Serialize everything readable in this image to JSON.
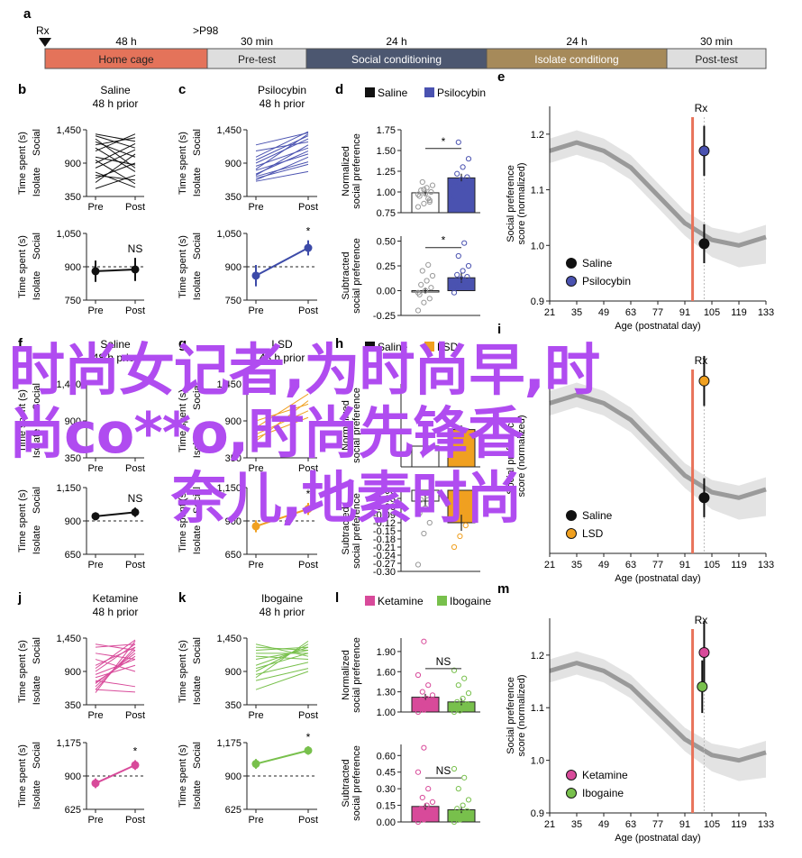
{
  "timeline": {
    "panel_letter": "a",
    "rx_label": "Rx",
    "p_label": ">P98",
    "segments": [
      {
        "duration": "48 h",
        "label": "Home cage",
        "color": "#e4735a"
      },
      {
        "duration": "30 min",
        "label": "Pre-test",
        "color": "#dedede"
      },
      {
        "duration": "24 h",
        "label": "Social conditioning",
        "color": "#4c5770"
      },
      {
        "duration": "24 h",
        "label": "Isolate conditiong",
        "color": "#a68a5a"
      },
      {
        "duration": "30 min",
        "label": "Post-test",
        "color": "#dedede"
      }
    ]
  },
  "labels": {
    "time_spent": "Time spent (s)",
    "social": "Social",
    "isolate": "Isolate",
    "pre": "Pre",
    "post": "Post",
    "norm_pref_1": "Normalized",
    "norm_pref_2": "social preference",
    "sub_pref_1": "Subtracted",
    "sub_pref_2": "social preference",
    "score_1": "Social preference",
    "score_2": "score (normalized)",
    "age_axis": "Age (postnatal day)",
    "rx": "Rx"
  },
  "watermark": {
    "line1": "时尚女记者,为时尚早,时",
    "line2": "尚co**o,时尚先锋香",
    "line3": "奈儿,地素时尚"
  },
  "chart_data": [
    {
      "panel": "b",
      "type": "line",
      "title": "Saline",
      "subtitle": "48 h prior",
      "color": "#111111",
      "categories": [
        "Pre",
        "Post"
      ],
      "yticks": [
        350,
        900,
        1450
      ],
      "ylim": [
        350,
        1450
      ],
      "lines": [
        [
          1000,
          870
        ],
        [
          1350,
          1150
        ],
        [
          700,
          620
        ],
        [
          1200,
          1320
        ],
        [
          580,
          1050
        ],
        [
          900,
          1220
        ],
        [
          1300,
          820
        ],
        [
          750,
          500
        ],
        [
          1100,
          1380
        ],
        [
          480,
          700
        ],
        [
          1250,
          1000
        ],
        [
          950,
          560
        ],
        [
          650,
          900
        ],
        [
          1380,
          1260
        ],
        [
          820,
          1120
        ],
        [
          1150,
          760
        ]
      ]
    },
    {
      "panel": "b2",
      "type": "line",
      "title": "",
      "subtitle": "",
      "color": "#111111",
      "categories": [
        "Pre",
        "Post"
      ],
      "yticks": [
        750,
        900,
        1050
      ],
      "ylim": [
        750,
        1050
      ],
      "ref": 900,
      "mean": [
        880,
        888
      ],
      "err": [
        48,
        52
      ],
      "annotation": "NS"
    },
    {
      "panel": "c",
      "type": "line",
      "title": "Psilocybin",
      "subtitle": "48 h prior",
      "color": "#4a52b0",
      "categories": [
        "Pre",
        "Post"
      ],
      "yticks": [
        350,
        900,
        1450
      ],
      "ylim": [
        350,
        1450
      ],
      "lines": [
        [
          620,
          1000
        ],
        [
          700,
          1200
        ],
        [
          800,
          1380
        ],
        [
          900,
          1300
        ],
        [
          650,
          880
        ],
        [
          1000,
          1420
        ],
        [
          720,
          1100
        ],
        [
          1100,
          1250
        ],
        [
          850,
          1150
        ],
        [
          950,
          1350
        ],
        [
          600,
          760
        ],
        [
          780,
          1050
        ],
        [
          1200,
          1400
        ],
        [
          680,
          920
        ]
      ]
    },
    {
      "panel": "c2",
      "type": "line",
      "title": "",
      "subtitle": "",
      "color": "#3c4aa8",
      "categories": [
        "Pre",
        "Post"
      ],
      "yticks": [
        750,
        900,
        1050
      ],
      "ylim": [
        750,
        1050
      ],
      "ref": 900,
      "mean": [
        860,
        985
      ],
      "err": [
        48,
        34
      ],
      "annotation": "*"
    },
    {
      "panel": "d",
      "type": "bar",
      "legend": [
        {
          "name": "Saline",
          "color": "#111111"
        },
        {
          "name": "Psilocybin",
          "color": "#4a52b0"
        }
      ],
      "categories": [
        "Saline",
        "Psilocybin"
      ],
      "yticks": [
        0.75,
        1.0,
        1.25,
        1.5,
        1.75
      ],
      "ylim": [
        0.75,
        1.75
      ],
      "values": [
        0.99,
        1.17
      ],
      "err": [
        0.03,
        0.05
      ],
      "bar_colors": [
        "#ffffff",
        "#4a52b0"
      ],
      "annotation": "*",
      "points": [
        [
          0.82,
          0.86,
          0.9,
          0.95,
          0.98,
          1.0,
          1.02,
          1.05,
          1.08,
          1.12,
          0.92,
          0.97,
          1.03,
          0.88
        ],
        [
          0.95,
          1.05,
          1.1,
          1.12,
          1.15,
          1.18,
          1.22,
          1.3,
          1.4,
          1.6,
          1.0,
          1.08
        ]
      ]
    },
    {
      "panel": "d2",
      "type": "bar",
      "categories": [
        "Saline",
        "Psilocybin"
      ],
      "yticks": [
        -0.25,
        0.0,
        0.25,
        0.5
      ],
      "ylim": [
        -0.25,
        0.55
      ],
      "values": [
        0.0,
        0.13
      ],
      "err": [
        0.03,
        0.05
      ],
      "bar_colors": [
        "#ffffff",
        "#4a52b0"
      ],
      "annotation": "*",
      "points": [
        [
          -0.2,
          -0.12,
          -0.08,
          -0.04,
          0.0,
          0.03,
          0.06,
          0.1,
          0.15,
          0.2,
          0.26,
          -0.02
        ],
        [
          -0.02,
          0.05,
          0.08,
          0.1,
          0.12,
          0.14,
          0.16,
          0.2,
          0.25,
          0.35,
          0.48,
          0.03
        ]
      ]
    },
    {
      "panel": "e",
      "type": "scatter",
      "xlabel": "Age (postnatal day)",
      "xticks": [
        21,
        35,
        49,
        63,
        77,
        91,
        105,
        119,
        133
      ],
      "yticks": [
        0.9,
        1.0,
        1.1,
        1.2
      ],
      "ylim": [
        0.9,
        1.25
      ],
      "rx_x": 95,
      "dash_x": 101,
      "curve": [
        [
          21,
          1.17
        ],
        [
          35,
          1.185
        ],
        [
          49,
          1.17
        ],
        [
          63,
          1.14
        ],
        [
          77,
          1.09
        ],
        [
          91,
          1.04
        ],
        [
          105,
          1.01
        ],
        [
          119,
          1.0
        ],
        [
          133,
          1.015
        ]
      ],
      "series": [
        {
          "name": "Saline",
          "color": "#111111",
          "x": 101,
          "y": 1.003,
          "err": 0.035
        },
        {
          "name": "Psilocybin",
          "color": "#4a52b0",
          "x": 101,
          "y": 1.17,
          "err": 0.045
        }
      ]
    },
    {
      "panel": "f",
      "type": "line",
      "title": "Saline",
      "subtitle": "48 h prior",
      "color": "#111111",
      "categories": [
        "Pre",
        "Post"
      ],
      "yticks": [
        350,
        900,
        1450
      ],
      "ylim": [
        350,
        1450
      ],
      "lines": []
    },
    {
      "panel": "f2",
      "type": "line",
      "title": "",
      "subtitle": "",
      "color": "#111111",
      "categories": [
        "Pre",
        "Post"
      ],
      "yticks": [
        650,
        900,
        1150
      ],
      "ylim": [
        650,
        1150
      ],
      "ref": 900,
      "mean": [
        935,
        965
      ],
      "err": [
        30,
        35
      ],
      "annotation": "NS"
    },
    {
      "panel": "g",
      "type": "line",
      "title": "LSD",
      "subtitle": "48 h prior",
      "color": "#f0a020",
      "categories": [
        "Pre",
        "Post"
      ],
      "yticks": [
        350,
        900,
        1450
      ],
      "ylim": [
        350,
        1450
      ],
      "lines": [
        [
          700,
          1050
        ],
        [
          600,
          1200
        ],
        [
          800,
          1300
        ],
        [
          900,
          1150
        ],
        [
          650,
          950
        ]
      ]
    },
    {
      "panel": "g2",
      "type": "line",
      "title": "",
      "subtitle": "",
      "color": "#f0a020",
      "categories": [
        "Pre",
        "Post"
      ],
      "yticks": [
        650,
        900,
        1150
      ],
      "ylim": [
        650,
        1150
      ],
      "ref": 900,
      "mean": [
        860,
        990
      ],
      "err": [
        45,
        45
      ],
      "annotation": "*"
    },
    {
      "panel": "h",
      "type": "bar",
      "legend": [
        {
          "name": "Saline",
          "color": "#111111"
        },
        {
          "name": "LSD",
          "color": "#f0a020"
        }
      ],
      "categories": [
        "Saline",
        "LSD"
      ],
      "yticks": [],
      "ylim": [
        0.75,
        1.75
      ],
      "values": [
        1.0,
        1.2
      ],
      "err": [
        0.03,
        0.05
      ],
      "bar_colors": [
        "#ffffff",
        "#f0a020"
      ],
      "points": [
        [],
        []
      ]
    },
    {
      "panel": "h2",
      "type": "bar",
      "categories": [
        "Saline",
        "LSD"
      ],
      "yticks": [
        -0.3,
        -0.27,
        -0.24,
        -0.21,
        -0.18,
        -0.15,
        -0.12,
        -0.09,
        -0.06,
        -0.03,
        0.0
      ],
      "ylim": [
        -0.3,
        0.0
      ],
      "values": [
        -0.04,
        -0.12
      ],
      "err": [
        0.02,
        0.03
      ],
      "bar_colors": [
        "#ffffff",
        "#f0a020"
      ],
      "points": [
        [
          -0.275,
          -0.16,
          -0.12,
          -0.085,
          -0.065,
          -0.05,
          -0.035,
          -0.02
        ],
        [
          -0.21,
          -0.17,
          -0.13,
          -0.1,
          -0.08,
          -0.05
        ]
      ]
    },
    {
      "panel": "i",
      "type": "scatter",
      "xlabel": "Age (postnatal day)",
      "xticks": [
        21,
        35,
        49,
        63,
        77,
        91,
        105,
        119,
        133
      ],
      "yticks": [],
      "ylim": [
        0.9,
        1.25
      ],
      "rx_x": 95,
      "dash_x": 101,
      "curve": [
        [
          21,
          1.17
        ],
        [
          35,
          1.185
        ],
        [
          49,
          1.17
        ],
        [
          63,
          1.14
        ],
        [
          77,
          1.09
        ],
        [
          91,
          1.04
        ],
        [
          105,
          1.01
        ],
        [
          119,
          1.0
        ],
        [
          133,
          1.015
        ]
      ],
      "series": [
        {
          "name": "Saline",
          "color": "#111111",
          "x": 101,
          "y": 1.0,
          "err": 0.035
        },
        {
          "name": "LSD",
          "color": "#f0a020",
          "x": 101,
          "y": 1.21,
          "err": 0.045
        }
      ]
    },
    {
      "panel": "j",
      "type": "line",
      "title": "Ketamine",
      "subtitle": "48 h prior",
      "color": "#d84a9a",
      "categories": [
        "Pre",
        "Post"
      ],
      "yticks": [
        350,
        900,
        1450
      ],
      "ylim": [
        350,
        1450
      ],
      "lines": [
        [
          550,
          1400
        ],
        [
          600,
          1300
        ],
        [
          650,
          1250
        ],
        [
          700,
          1200
        ],
        [
          720,
          1150
        ],
        [
          800,
          1000
        ],
        [
          850,
          1100
        ],
        [
          900,
          1350
        ],
        [
          950,
          1420
        ],
        [
          1000,
          1300
        ],
        [
          1100,
          900
        ],
        [
          1200,
          1100
        ],
        [
          1300,
          1350
        ],
        [
          1350,
          1250
        ],
        [
          750,
          650
        ],
        [
          600,
          560
        ]
      ]
    },
    {
      "panel": "j2",
      "type": "line",
      "title": "",
      "subtitle": "",
      "color": "#d84a9a",
      "categories": [
        "Pre",
        "Post"
      ],
      "yticks": [
        625,
        900,
        1175
      ],
      "ylim": [
        625,
        1175
      ],
      "ref": 900,
      "mean": [
        840,
        990
      ],
      "err": [
        40,
        40
      ],
      "annotation": "*"
    },
    {
      "panel": "k",
      "type": "line",
      "title": "Ibogaine",
      "subtitle": "48 h prior",
      "color": "#78c04c",
      "categories": [
        "Pre",
        "Post"
      ],
      "yticks": [
        350,
        900,
        1450
      ],
      "ylim": [
        350,
        1450
      ],
      "lines": [
        [
          800,
          1400
        ],
        [
          900,
          1350
        ],
        [
          1000,
          1300
        ],
        [
          1100,
          1250
        ],
        [
          1200,
          1200
        ],
        [
          1300,
          1250
        ],
        [
          1350,
          1150
        ],
        [
          1150,
          1100
        ],
        [
          600,
          900
        ],
        [
          750,
          950
        ],
        [
          850,
          1050
        ],
        [
          950,
          1200
        ],
        [
          1250,
          1300
        ]
      ]
    },
    {
      "panel": "k2",
      "type": "line",
      "title": "",
      "subtitle": "",
      "color": "#78c04c",
      "categories": [
        "Pre",
        "Post"
      ],
      "yticks": [
        625,
        900,
        1175
      ],
      "ylim": [
        625,
        1175
      ],
      "ref": 900,
      "mean": [
        1000,
        1110
      ],
      "err": [
        40,
        35
      ],
      "annotation": "*"
    },
    {
      "panel": "l",
      "type": "bar",
      "legend": [
        {
          "name": "Ketamine",
          "color": "#d84a9a"
        },
        {
          "name": "Ibogaine",
          "color": "#78c04c"
        }
      ],
      "categories": [
        "Ketamine",
        "Ibogaine"
      ],
      "yticks": [
        1.0,
        1.3,
        1.6,
        1.9
      ],
      "ylim": [
        1.0,
        2.1
      ],
      "values": [
        1.22,
        1.15
      ],
      "err": [
        0.05,
        0.05
      ],
      "bar_colors": [
        "#d84a9a",
        "#78c04c"
      ],
      "annotation": "NS",
      "points": [
        [
          1.0,
          1.03,
          1.06,
          1.1,
          1.12,
          1.15,
          1.18,
          1.2,
          1.25,
          1.3,
          1.4,
          1.55,
          2.05
        ],
        [
          1.0,
          1.02,
          1.05,
          1.08,
          1.1,
          1.12,
          1.15,
          1.2,
          1.28,
          1.4,
          1.5,
          1.62
        ]
      ]
    },
    {
      "panel": "l2",
      "type": "bar",
      "categories": [
        "Ketamine",
        "Ibogaine"
      ],
      "yticks": [
        0.0,
        0.15,
        0.3,
        0.45,
        0.6
      ],
      "ylim": [
        0.0,
        0.7
      ],
      "values": [
        0.14,
        0.11
      ],
      "err": [
        0.03,
        0.03
      ],
      "bar_colors": [
        "#d84a9a",
        "#78c04c"
      ],
      "annotation": "NS",
      "points": [
        [
          0.0,
          0.02,
          0.04,
          0.06,
          0.08,
          0.1,
          0.12,
          0.15,
          0.18,
          0.22,
          0.3,
          0.45,
          0.67
        ],
        [
          0.0,
          0.02,
          0.04,
          0.06,
          0.08,
          0.1,
          0.12,
          0.15,
          0.2,
          0.3,
          0.4,
          0.48
        ]
      ]
    },
    {
      "panel": "m",
      "type": "scatter",
      "xlabel": "Age (postnatal day)",
      "xticks": [
        21,
        35,
        49,
        63,
        77,
        91,
        105,
        119,
        133
      ],
      "yticks": [
        0.9,
        1.0,
        1.1,
        1.2
      ],
      "ylim": [
        0.9,
        1.27
      ],
      "rx_x": 95,
      "dash_x": 101,
      "curve": [
        [
          21,
          1.17
        ],
        [
          35,
          1.185
        ],
        [
          49,
          1.17
        ],
        [
          63,
          1.14
        ],
        [
          77,
          1.09
        ],
        [
          91,
          1.04
        ],
        [
          105,
          1.01
        ],
        [
          119,
          1.0
        ],
        [
          133,
          1.015
        ]
      ],
      "series": [
        {
          "name": "Ketamine",
          "color": "#d84a9a",
          "x": 101,
          "y": 1.205,
          "err": 0.06
        },
        {
          "name": "Ibogaine",
          "color": "#78c04c",
          "x": 100,
          "y": 1.14,
          "err": 0.05
        }
      ]
    }
  ]
}
